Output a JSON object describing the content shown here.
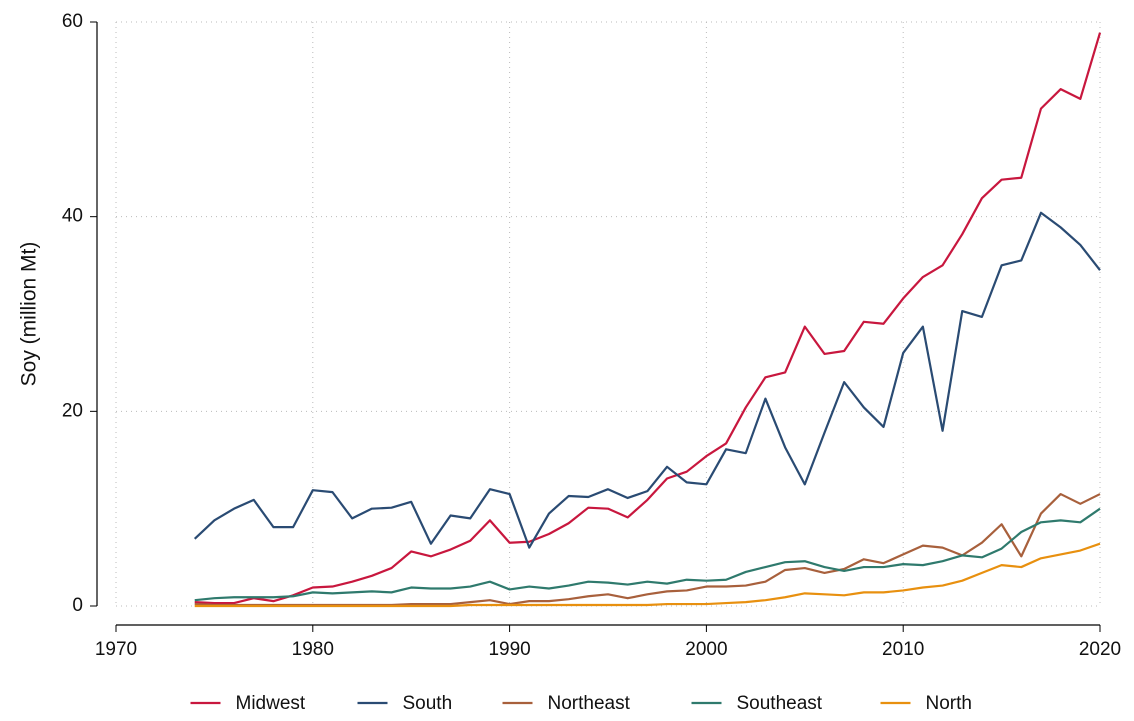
{
  "chart_data": {
    "type": "line",
    "y_label": "Soy (million Mt)",
    "x": [
      1974,
      1975,
      1976,
      1977,
      1978,
      1979,
      1980,
      1981,
      1982,
      1983,
      1984,
      1985,
      1986,
      1987,
      1988,
      1989,
      1990,
      1991,
      1992,
      1993,
      1994,
      1995,
      1996,
      1997,
      1998,
      1999,
      2000,
      2001,
      2002,
      2003,
      2004,
      2005,
      2006,
      2007,
      2008,
      2009,
      2010,
      2011,
      2012,
      2013,
      2014,
      2015,
      2016,
      2017,
      2018,
      2019,
      2020
    ],
    "series": [
      {
        "name": "Midwest",
        "color": "#c8173e",
        "values": [
          0.4,
          0.3,
          0.3,
          0.8,
          0.5,
          1.1,
          1.9,
          2.0,
          2.5,
          3.1,
          3.9,
          5.6,
          5.1,
          5.8,
          6.7,
          8.8,
          6.5,
          6.6,
          7.4,
          8.5,
          10.1,
          10.0,
          9.1,
          10.9,
          13.1,
          13.8,
          15.4,
          16.7,
          20.4,
          23.5,
          24.0,
          28.7,
          25.9,
          26.2,
          29.2,
          29.0,
          31.6,
          33.8,
          35.0,
          38.2,
          41.9,
          43.8,
          44.0,
          51.1,
          53.1,
          52.1,
          58.9
        ]
      },
      {
        "name": "South",
        "color": "#2a4b73",
        "values": [
          6.9,
          8.8,
          10.0,
          10.9,
          8.1,
          8.1,
          11.9,
          11.7,
          9.0,
          10.0,
          10.1,
          10.7,
          6.4,
          9.3,
          9.0,
          12.0,
          11.5,
          6.0,
          9.5,
          11.3,
          11.2,
          12.0,
          11.1,
          11.8,
          14.3,
          12.7,
          12.5,
          16.1,
          15.7,
          21.3,
          16.3,
          12.5,
          17.8,
          23.0,
          20.4,
          18.4,
          26.0,
          28.7,
          18.0,
          30.3,
          29.7,
          35.0,
          35.5,
          40.4,
          38.9,
          37.1,
          34.5
        ]
      },
      {
        "name": "Northeast",
        "color": "#a8603c",
        "values": [
          0.2,
          0.1,
          0.1,
          0.1,
          0.1,
          0.1,
          0.1,
          0.1,
          0.1,
          0.1,
          0.1,
          0.2,
          0.2,
          0.2,
          0.4,
          0.6,
          0.2,
          0.5,
          0.5,
          0.7,
          1.0,
          1.2,
          0.8,
          1.2,
          1.5,
          1.6,
          2.0,
          2.0,
          2.1,
          2.5,
          3.7,
          3.9,
          3.4,
          3.8,
          4.8,
          4.4,
          5.3,
          6.2,
          6.0,
          5.2,
          6.5,
          8.4,
          5.1,
          9.5,
          11.5,
          10.5,
          11.5
        ]
      },
      {
        "name": "Southeast",
        "color": "#2f7a6d",
        "values": [
          0.6,
          0.8,
          0.9,
          0.9,
          0.9,
          1.0,
          1.4,
          1.3,
          1.4,
          1.5,
          1.4,
          1.9,
          1.8,
          1.8,
          2.0,
          2.5,
          1.7,
          2.0,
          1.8,
          2.1,
          2.5,
          2.4,
          2.2,
          2.5,
          2.3,
          2.7,
          2.6,
          2.7,
          3.5,
          4.0,
          4.5,
          4.6,
          4.0,
          3.6,
          4.0,
          4.0,
          4.3,
          4.2,
          4.6,
          5.2,
          5.0,
          5.9,
          7.6,
          8.6,
          8.8,
          8.6,
          10.0
        ]
      },
      {
        "name": "North",
        "color": "#e8900f",
        "values": [
          0,
          0,
          0,
          0,
          0,
          0,
          0,
          0,
          0,
          0,
          0,
          0,
          0,
          0,
          0.1,
          0.1,
          0.1,
          0.1,
          0.1,
          0.1,
          0.1,
          0.1,
          0.1,
          0.1,
          0.2,
          0.2,
          0.2,
          0.3,
          0.4,
          0.6,
          0.9,
          1.3,
          1.2,
          1.1,
          1.4,
          1.4,
          1.6,
          1.9,
          2.1,
          2.6,
          3.4,
          4.2,
          4.0,
          4.9,
          5.3,
          5.7,
          6.4
        ]
      }
    ],
    "xlim": [
      1970,
      2020
    ],
    "xticks": [
      1970,
      1980,
      1990,
      2000,
      2010,
      2020
    ],
    "ylim": [
      0,
      60
    ],
    "yticks": [
      0,
      20,
      40,
      60
    ],
    "grid": true,
    "legend": "bottom"
  }
}
